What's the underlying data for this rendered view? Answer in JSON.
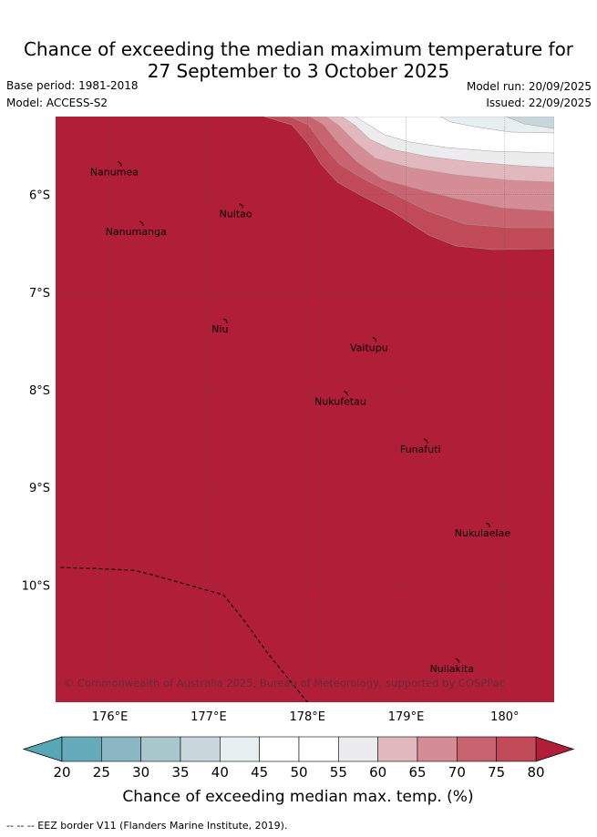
{
  "header": {
    "title_line1": "Chance of exceeding the median maximum temperature for",
    "title_line2": "27 September to 3 October 2025",
    "base_period": "Base period: 1981-2018",
    "model": "Model: ACCESS-S2",
    "model_run": "Model run: 20/09/2025",
    "issued": "Issued: 22/09/2025"
  },
  "map": {
    "lon_range": [
      175.45,
      180.5
    ],
    "lat_range": [
      -11.2,
      -5.2
    ],
    "lon_ticks": [
      {
        "value": 176,
        "label": "176°E"
      },
      {
        "value": 177,
        "label": "177°E"
      },
      {
        "value": 178,
        "label": "178°E"
      },
      {
        "value": 179,
        "label": "179°E"
      },
      {
        "value": 180,
        "label": "180°"
      }
    ],
    "lat_ticks": [
      {
        "value": -6,
        "label": "6°S"
      },
      {
        "value": -7,
        "label": "7°S"
      },
      {
        "value": -8,
        "label": "8°S"
      },
      {
        "value": -9,
        "label": "9°S"
      },
      {
        "value": -10,
        "label": "10°S"
      }
    ],
    "islands": [
      {
        "name": "Nanumea",
        "lon": 176.1,
        "lat": -5.68
      },
      {
        "name": "Nuitao",
        "lon": 177.33,
        "lat": -6.11
      },
      {
        "name": "Nanumanga",
        "lon": 176.32,
        "lat": -6.29
      },
      {
        "name": "Niu",
        "lon": 177.17,
        "lat": -7.29
      },
      {
        "name": "Vaitupu",
        "lon": 178.68,
        "lat": -7.48
      },
      {
        "name": "Nukufetau",
        "lon": 178.39,
        "lat": -8.03
      },
      {
        "name": "Funafuti",
        "lon": 179.2,
        "lat": -8.52
      },
      {
        "name": "Nukulaelae",
        "lon": 179.83,
        "lat": -9.38
      },
      {
        "name": "Nuilakita",
        "lon": 179.52,
        "lat": -10.77
      }
    ],
    "eez_border": [
      [
        175.5,
        -9.82
      ],
      [
        175.85,
        -9.83
      ],
      [
        176.25,
        -9.85
      ],
      [
        176.45,
        -9.9
      ],
      [
        176.8,
        -10.0
      ],
      [
        177.15,
        -10.1
      ],
      [
        177.35,
        -10.35
      ],
      [
        177.6,
        -10.7
      ],
      [
        177.8,
        -10.95
      ],
      [
        178.0,
        -11.2
      ]
    ],
    "attribution": "© Commonwealth of Australia 2025, Bureau of Meteorology, supported by COSPPac"
  },
  "colorbar": {
    "levels": [
      20,
      25,
      30,
      35,
      40,
      45,
      50,
      55,
      60,
      65,
      70,
      75,
      80
    ],
    "colors": [
      "#66abb9",
      "#8bb7c3",
      "#a8c7cc",
      "#c8d7dc",
      "#e8eff1",
      "#ffffff",
      "#ffffff",
      "#ececee",
      "#e0b8bd",
      "#d48d95",
      "#c86470",
      "#c04a58"
    ],
    "under_color": "#57a7b5",
    "over_color": "#b01e38",
    "label": "Chance of exceeding median max. temp. (%)"
  },
  "legend": {
    "eez": "-- -- -- EEZ border V11 (Flanders Marine Institute, 2019)."
  }
}
